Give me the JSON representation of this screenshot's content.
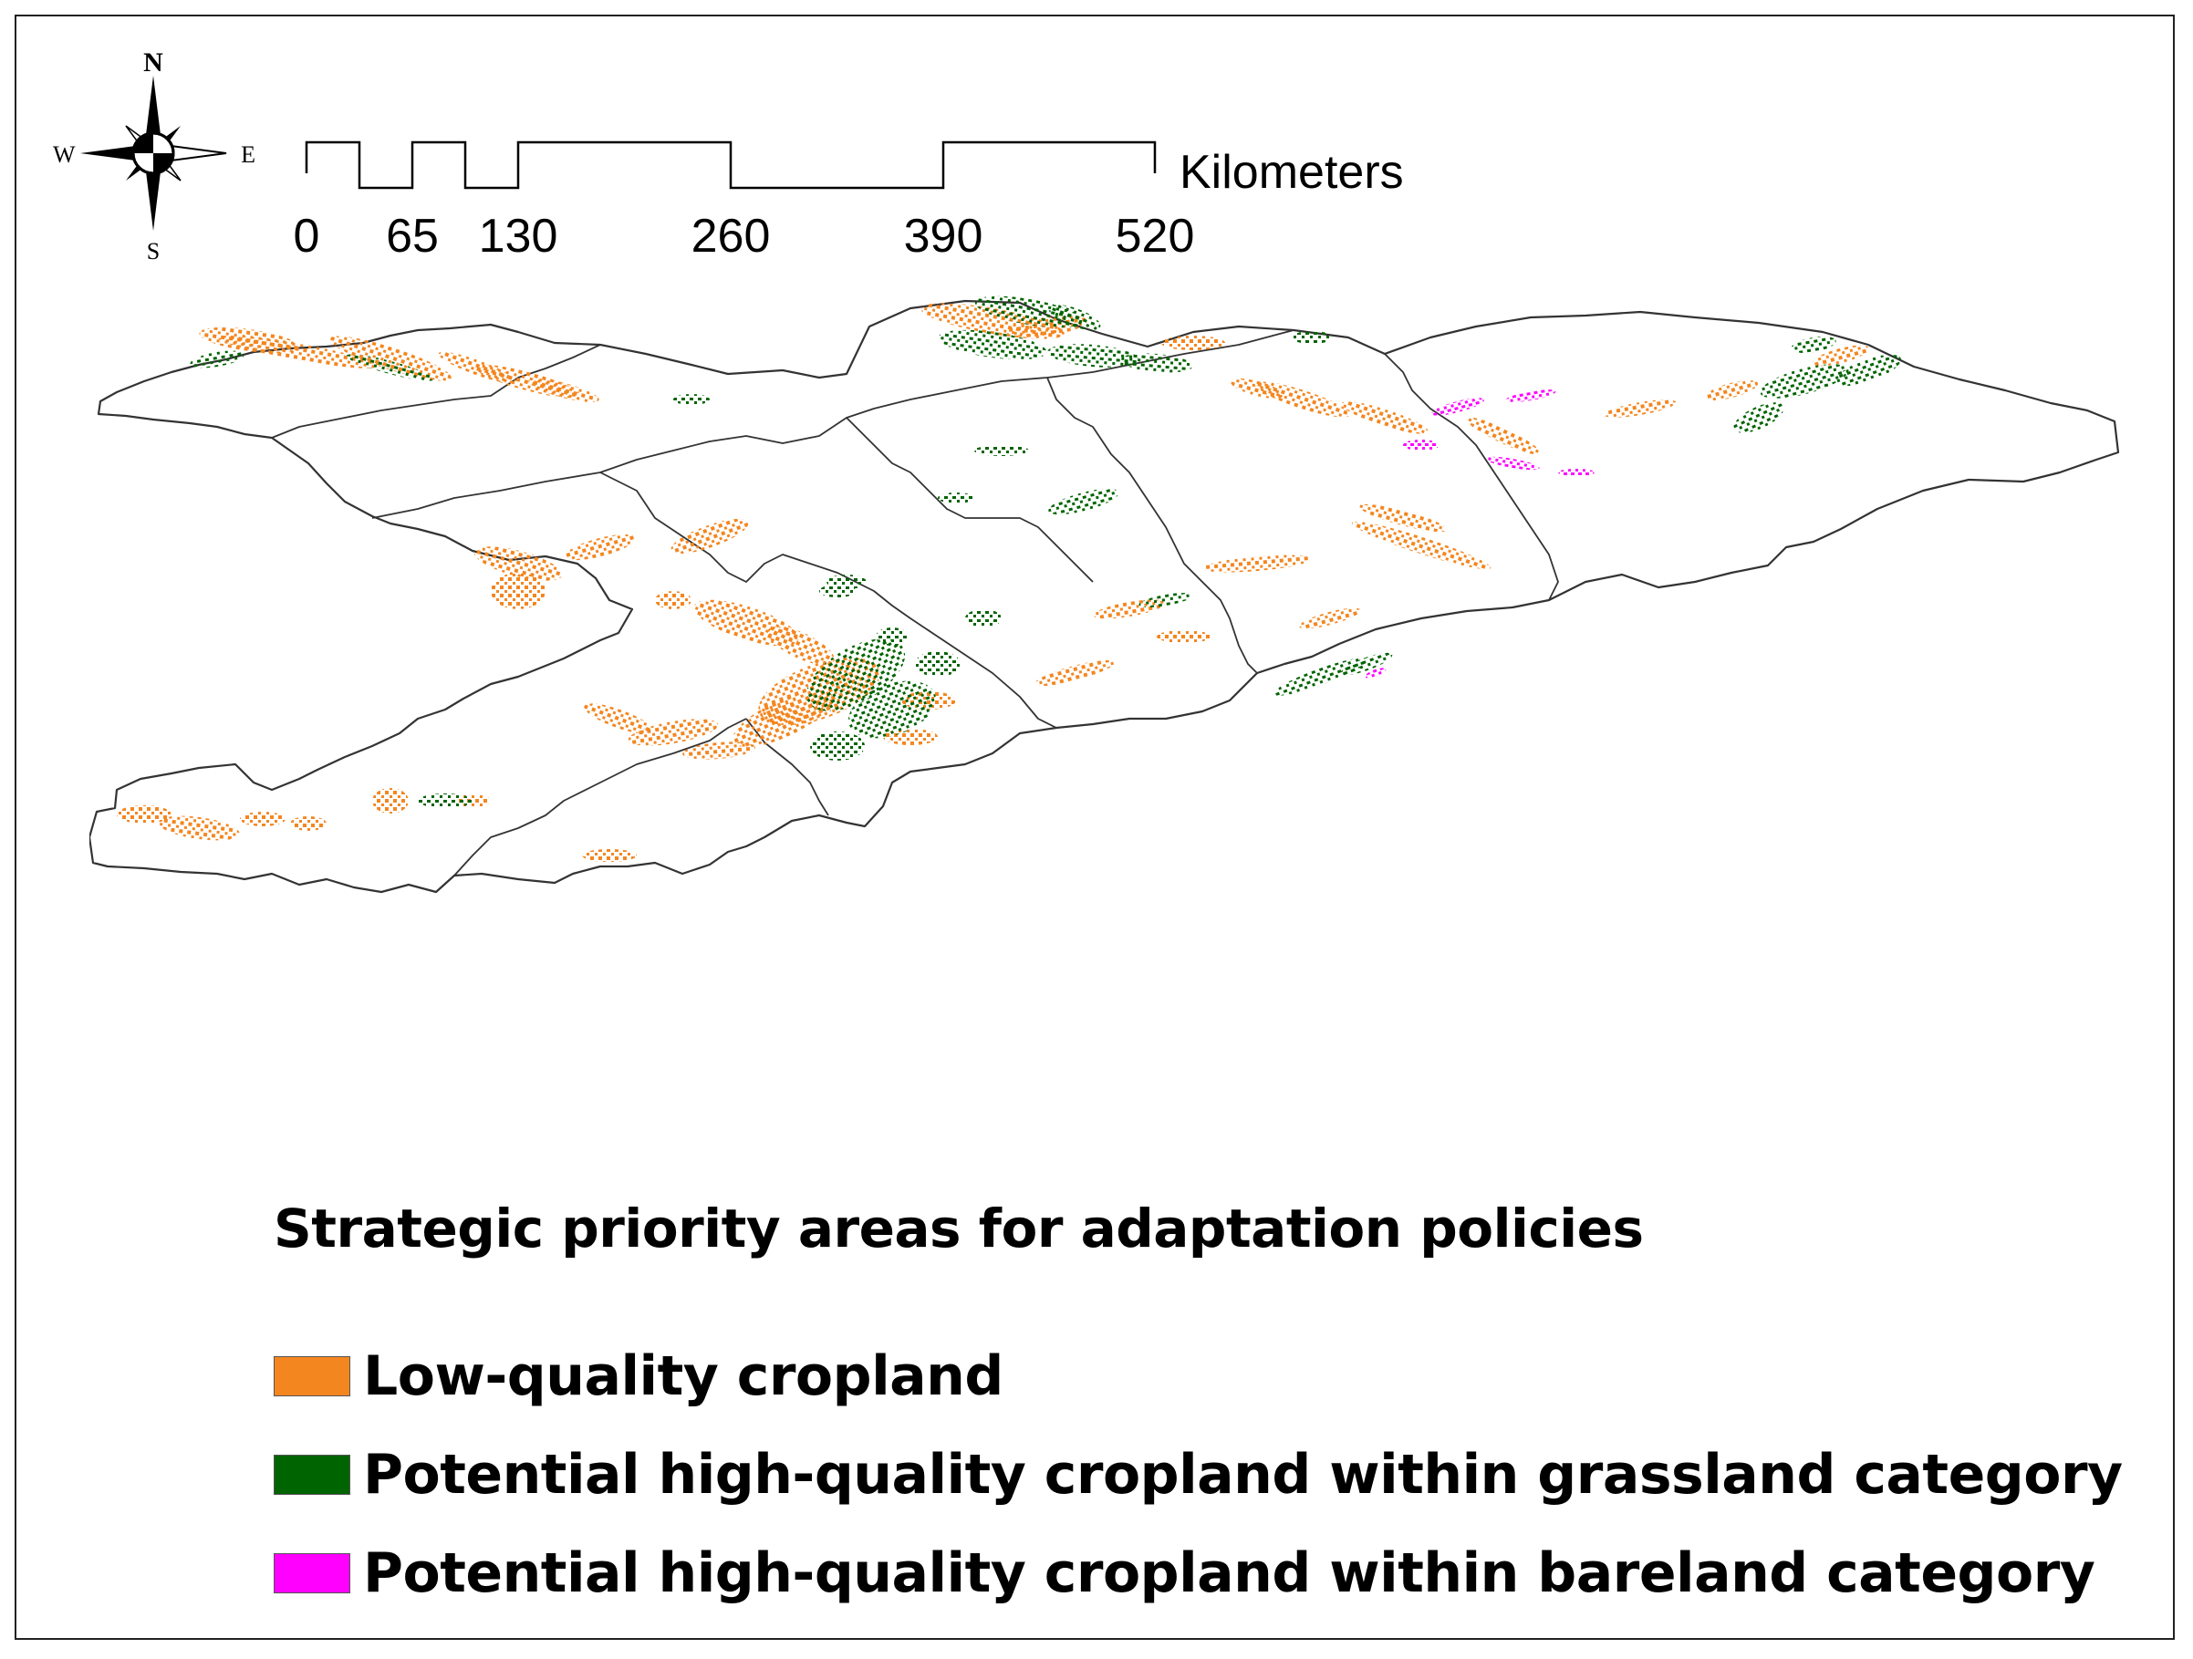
{
  "compass": {
    "north": "N",
    "south": "S",
    "east": "E",
    "west": "W",
    "icon": "compass-rose-icon"
  },
  "scale_bar": {
    "unit": "Kilometers",
    "ticks": [
      "0",
      "65",
      "130",
      "260",
      "390",
      "520"
    ]
  },
  "legend": {
    "title": "Strategic priority areas for adaptation policies",
    "items": [
      {
        "label": "Low-quality cropland",
        "color": "#f4861f"
      },
      {
        "label": "Potential high-quality cropland within grassland category",
        "color": "#006400"
      },
      {
        "label": "Potential high-quality cropland within bareland category",
        "color": "#ff00ff"
      }
    ]
  },
  "map_colors": {
    "boundary": "#333333",
    "background": "#ffffff"
  }
}
